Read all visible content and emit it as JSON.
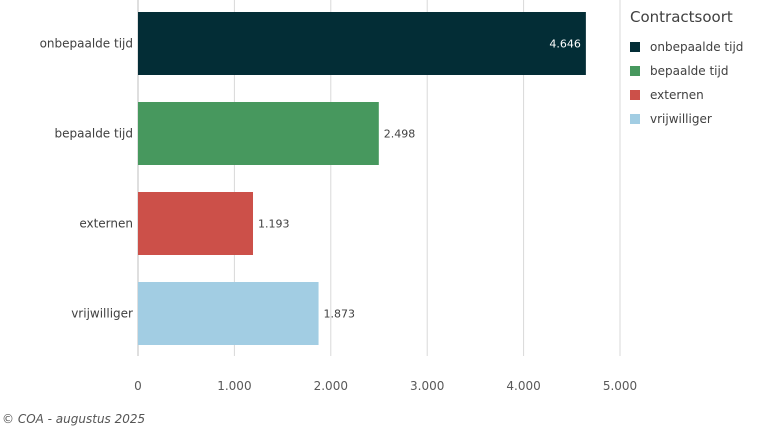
{
  "chart_data": {
    "type": "bar",
    "orientation": "horizontal",
    "categories": [
      "onbepaalde tijd",
      "bepaalde tijd",
      "externen",
      "vrijwilliger"
    ],
    "values": [
      4646,
      2498,
      1193,
      1873
    ],
    "value_labels": [
      "4.646",
      "2.498",
      "1.193",
      "1.873"
    ],
    "colors": [
      "#032d36",
      "#47985e",
      "#cc5049",
      "#a2cde3"
    ],
    "xlim": [
      0,
      5000
    ],
    "x_ticks": [
      0,
      1000,
      2000,
      3000,
      4000,
      5000
    ],
    "x_tick_labels": [
      "0",
      "1.000",
      "2.000",
      "3.000",
      "4.000",
      "5.000"
    ],
    "grid": true,
    "legend": {
      "title": "Contractsoort",
      "position": "right",
      "items": [
        {
          "label": "onbepaalde tijd",
          "color": "#032d36"
        },
        {
          "label": "bepaalde tijd",
          "color": "#47985e"
        },
        {
          "label": "externen",
          "color": "#cc5049"
        },
        {
          "label": "vrijwilliger",
          "color": "#a2cde3"
        }
      ]
    }
  },
  "footer": "© COA - augustus 2025"
}
